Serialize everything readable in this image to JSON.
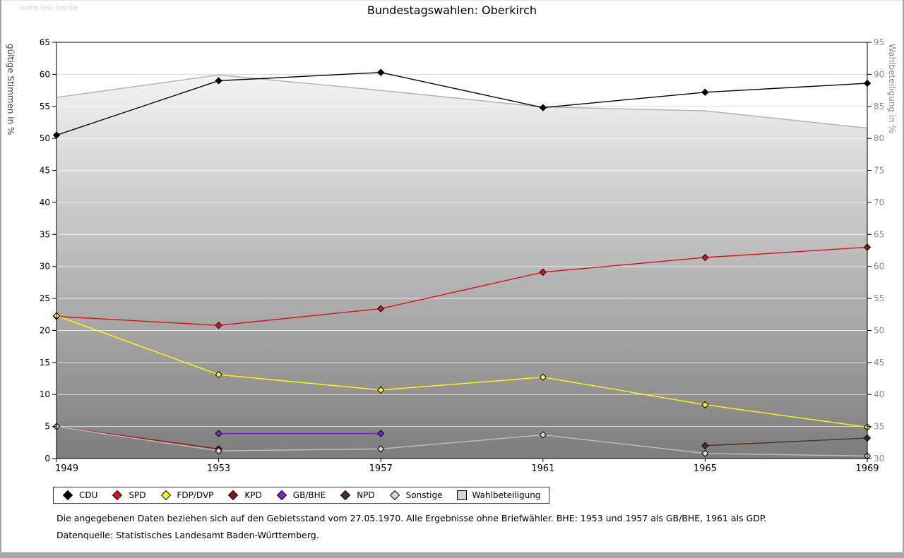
{
  "watermark": "www.leo-bw.de",
  "chart_data": {
    "type": "line",
    "title": "Bundestagswahlen: Oberkirch",
    "x": [
      "1949",
      "1953",
      "1957",
      "1961",
      "1965",
      "1969"
    ],
    "left_axis": {
      "label": "gültige Stimmen in %",
      "min": 0,
      "max": 65,
      "tick_step": 5
    },
    "right_axis": {
      "label": "Wahlbeteiligung in %",
      "min": 30,
      "max": 95,
      "tick_step": 5
    },
    "grid": "horizontal",
    "legend_position": "bottom",
    "series": [
      {
        "name": "CDU",
        "color": "#000000",
        "axis": "left",
        "marker": "diamond",
        "values": [
          50.5,
          59.0,
          60.3,
          54.8,
          57.2,
          58.6
        ]
      },
      {
        "name": "SPD",
        "color": "#dd1111",
        "axis": "left",
        "marker": "diamond",
        "values": [
          22.2,
          20.8,
          23.4,
          29.1,
          31.4,
          33.0
        ]
      },
      {
        "name": "FDP/DVP",
        "color": "#ffff00",
        "axis": "left",
        "marker": "diamond",
        "values": [
          22.3,
          13.1,
          10.7,
          12.7,
          8.4,
          4.9
        ]
      },
      {
        "name": "KPD",
        "color": "#991111",
        "axis": "left",
        "marker": "diamond",
        "values": [
          5.0,
          1.5,
          null,
          null,
          null,
          null
        ]
      },
      {
        "name": "GB/BHE",
        "color": "#8022cc",
        "axis": "left",
        "marker": "diamond",
        "values": [
          null,
          3.9,
          3.9,
          null,
          null,
          null
        ]
      },
      {
        "name": "NPD",
        "color": "#4d331a",
        "axis": "left",
        "marker": "diamond",
        "values": [
          null,
          null,
          null,
          null,
          2.0,
          3.2
        ]
      },
      {
        "name": "Sonstige",
        "color": "#bfbfbf",
        "axis": "left",
        "marker": "diamond",
        "marker_fill": "#d9d9d9",
        "values": [
          5.0,
          1.2,
          1.5,
          3.7,
          0.8,
          0.4
        ]
      },
      {
        "name": "Wahlbeteiligung",
        "color": "#b3b3b3",
        "axis": "right",
        "marker": "none",
        "area": true,
        "values": [
          86.4,
          89.9,
          87.5,
          84.9,
          84.3,
          81.6
        ]
      }
    ]
  },
  "footer": {
    "line1": "Die angegebenen Daten beziehen sich auf den Gebietsstand vom 27.05.1970. Alle Ergebnisse ohne Briefwähler. BHE: 1953 und 1957 als GB/BHE, 1961 als GDP.",
    "line2": "Datenquelle: Statistisches Landesamt Baden-Württemberg."
  }
}
